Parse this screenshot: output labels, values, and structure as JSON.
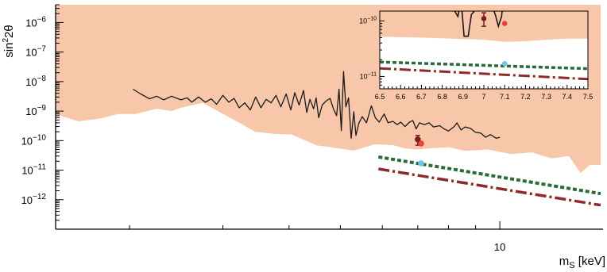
{
  "chart_data": [
    {
      "type": "line",
      "xlabel": "m_S [keV]",
      "ylabel": "sin^2 2θ",
      "x_scale": "log",
      "y_scale": "log",
      "xlim": [
        1.45,
        15.5
      ],
      "ylim": [
        1e-13,
        4e-06
      ],
      "x_tick_labels": [
        {
          "value": 10,
          "label": "10"
        }
      ],
      "y_tick_labels": [
        {
          "value": 1e-06,
          "base": "10",
          "exp": "−6"
        },
        {
          "value": 1e-07,
          "base": "10",
          "exp": "−7"
        },
        {
          "value": 1e-08,
          "base": "10",
          "exp": "−8"
        },
        {
          "value": 1e-09,
          "base": "10",
          "exp": "−9"
        },
        {
          "value": 1e-10,
          "base": "10",
          "exp": "−10"
        },
        {
          "value": 1e-11,
          "base": "10",
          "exp": "−11"
        },
        {
          "value": 1e-12,
          "base": "10",
          "exp": "−12"
        }
      ],
      "excluded_region": {
        "color": "#f8c7a9",
        "lower_boundary": [
          [
            1.45,
            8e-10
          ],
          [
            1.6,
            4.5e-10
          ],
          [
            1.75,
            5.5e-10
          ],
          [
            1.9,
            8e-10
          ],
          [
            2.05,
            8e-10
          ],
          [
            2.25,
            1.2e-09
          ],
          [
            2.4,
            1e-09
          ],
          [
            2.5,
            1.3e-09
          ],
          [
            2.75,
            1.9e-09
          ],
          [
            3.2,
            4.3e-10
          ],
          [
            3.45,
            2e-10
          ],
          [
            3.75,
            1.7e-10
          ],
          [
            4.05,
            1.6e-10
          ],
          [
            4.5,
            7e-11
          ],
          [
            5.3,
            4.6e-11
          ],
          [
            5.8,
            7.5e-11
          ],
          [
            6.3,
            7e-11
          ],
          [
            6.6,
            5.5e-11
          ],
          [
            7.0,
            5e-11
          ],
          [
            7.4,
            5.5e-11
          ],
          [
            8.0,
            6e-11
          ],
          [
            8.6,
            4.5e-11
          ],
          [
            9.5,
            5e-11
          ],
          [
            10.5,
            3.5e-11
          ],
          [
            11.5,
            4e-11
          ],
          [
            12.5,
            2.5e-11
          ],
          [
            13.5,
            3e-11
          ],
          [
            14.2,
            8e-12
          ],
          [
            14.8,
            1.5e-11
          ],
          [
            15.5,
            1.5e-11
          ]
        ]
      },
      "limit_curve": {
        "color": "#1a1a1a",
        "points": [
          [
            2.03,
            5.5e-09
          ],
          [
            2.1,
            3.8e-09
          ],
          [
            2.18,
            2.6e-09
          ],
          [
            2.25,
            3.2e-09
          ],
          [
            2.32,
            2.4e-09
          ],
          [
            2.4,
            3.2e-09
          ],
          [
            2.5,
            2.4e-09
          ],
          [
            2.57,
            2.8e-09
          ],
          [
            2.62,
            2e-09
          ],
          [
            2.7,
            3e-09
          ],
          [
            2.78,
            2e-09
          ],
          [
            2.85,
            2.6e-09
          ],
          [
            2.92,
            1.7e-09
          ],
          [
            3.0,
            3.4e-09
          ],
          [
            3.08,
            2e-09
          ],
          [
            3.15,
            2.7e-09
          ],
          [
            3.22,
            1.3e-09
          ],
          [
            3.3,
            1.9e-09
          ],
          [
            3.38,
            1.1e-09
          ],
          [
            3.46,
            3e-09
          ],
          [
            3.54,
            1.3e-09
          ],
          [
            3.62,
            2.5e-09
          ],
          [
            3.7,
            1.9e-09
          ],
          [
            3.78,
            3.4e-09
          ],
          [
            3.86,
            1.4e-09
          ],
          [
            3.95,
            3.8e-09
          ],
          [
            4.03,
            1.1e-09
          ],
          [
            4.1,
            4.2e-09
          ],
          [
            4.18,
            1.6e-09
          ],
          [
            4.26,
            5e-09
          ],
          [
            4.32,
            9e-10
          ],
          [
            4.38,
            2.5e-09
          ],
          [
            4.45,
            1.2e-09
          ],
          [
            4.5,
            2.8e-09
          ],
          [
            4.55,
            6e-10
          ],
          [
            4.62,
            1.6e-09
          ],
          [
            4.7,
            2.2e-09
          ],
          [
            4.78,
            2.7e-09
          ],
          [
            4.85,
            1.2e-09
          ],
          [
            4.92,
            7e-10
          ],
          [
            4.97,
            5.5e-09
          ],
          [
            5.02,
            2.2e-10
          ],
          [
            5.07,
            2.2e-08
          ],
          [
            5.12,
            1.4e-09
          ],
          [
            5.18,
            2.8e-09
          ],
          [
            5.24,
            1.2e-10
          ],
          [
            5.3,
            9.5e-10
          ],
          [
            5.35,
            1.5e-10
          ],
          [
            5.42,
            4e-10
          ],
          [
            5.5,
            6.5e-10
          ],
          [
            5.6,
            4e-10
          ],
          [
            5.72,
            1.5e-09
          ],
          [
            5.82,
            6e-10
          ],
          [
            5.92,
            4.2e-10
          ],
          [
            6.05,
            8e-10
          ],
          [
            6.15,
            4e-10
          ],
          [
            6.28,
            4.5e-10
          ],
          [
            6.4,
            3.5e-10
          ],
          [
            6.5,
            4.2e-10
          ],
          [
            6.62,
            3e-10
          ],
          [
            6.75,
            4.2e-10
          ],
          [
            6.85,
            4.8e-10
          ],
          [
            6.95,
            2.5e-10
          ],
          [
            7.05,
            4e-10
          ],
          [
            7.2,
            3.5e-10
          ],
          [
            7.35,
            4e-10
          ],
          [
            7.5,
            2.9e-10
          ],
          [
            7.7,
            3.2e-10
          ],
          [
            7.85,
            2.5e-10
          ],
          [
            8.0,
            2.1e-10
          ],
          [
            8.2,
            3e-10
          ],
          [
            8.3,
            4e-10
          ],
          [
            8.45,
            2.3e-10
          ],
          [
            8.6,
            2.9e-10
          ],
          [
            8.8,
            2.6e-10
          ],
          [
            9.0,
            1.9e-10
          ],
          [
            9.2,
            1.8e-10
          ],
          [
            9.4,
            1.3e-10
          ],
          [
            9.6,
            1.6e-10
          ],
          [
            9.85,
            1.2e-10
          ],
          [
            10.0,
            1.3e-10
          ]
        ]
      },
      "green_dashed_line": {
        "color": "#2b6b3a",
        "points": [
          [
            5.9,
            2.8e-11
          ],
          [
            15.5,
            1.6e-12
          ]
        ]
      },
      "red_dashdot_line": {
        "color": "#8e2a2a",
        "points": [
          [
            5.9,
            1.1e-11
          ],
          [
            15.5,
            6.5e-13
          ]
        ]
      },
      "points": [
        {
          "x": 7.0,
          "y": 1.1e-10,
          "yerr_low": 7e-11,
          "yerr_high": 1.5e-10,
          "color": "#7a2020"
        },
        {
          "x": 7.1,
          "y": 8e-11,
          "color": "#e8403a"
        },
        {
          "x": 7.1,
          "y": 1.7e-11,
          "color": "#6ec5e8"
        }
      ]
    },
    {
      "type": "line",
      "xlabel": "",
      "ylabel": "",
      "x_scale": "linear",
      "y_scale": "log",
      "xlim": [
        6.5,
        7.5
      ],
      "ylim": [
        6e-12,
        1.5e-10
      ],
      "x_tick_labels": [
        "6.5",
        "6.6",
        "6.7",
        "6.8",
        "6.9",
        "7",
        "7.1",
        "7.2",
        "7.3",
        "7.4",
        "7.5"
      ],
      "y_tick_labels": [
        {
          "value": 1e-10,
          "base": "10",
          "exp": "−10"
        },
        {
          "value": 1e-11,
          "base": "10",
          "exp": "−11"
        }
      ],
      "excluded_lower_boundary": [
        [
          6.5,
          5.2e-11
        ],
        [
          6.7,
          5e-11
        ],
        [
          6.9,
          4.7e-11
        ],
        [
          7.0,
          4.6e-11
        ],
        [
          7.1,
          4.2e-11
        ],
        [
          7.2,
          4.3e-11
        ],
        [
          7.3,
          4.6e-11
        ],
        [
          7.4,
          4.8e-11
        ],
        [
          7.5,
          4.8e-11
        ]
      ],
      "limit_curve": [
        [
          6.86,
          1.5e-10
        ],
        [
          6.875,
          1.2e-10
        ],
        [
          6.885,
          1.8e-10
        ],
        [
          6.895,
          1.5e-10
        ],
        [
          6.905,
          5.3e-11
        ],
        [
          6.925,
          5.3e-11
        ],
        [
          6.94,
          1.3e-10
        ],
        [
          6.955,
          1.5e-10
        ],
        [
          6.96,
          1.8e-10
        ],
        [
          7.04,
          1.8e-10
        ],
        [
          7.055,
          1.3e-10
        ],
        [
          7.07,
          8e-11
        ],
        [
          7.085,
          1.2e-10
        ],
        [
          7.09,
          1.8e-10
        ]
      ],
      "green_dashed_line": [
        [
          6.5,
          1.82e-11
        ],
        [
          7.5,
          1.38e-11
        ]
      ],
      "red_dashdot_line": [
        [
          6.5,
          1.4e-11
        ],
        [
          7.5,
          9e-12
        ]
      ],
      "points": [
        {
          "x": 7.0,
          "y": 1.1e-10,
          "yerr_low": 8e-11,
          "yerr_high": 1.4e-10,
          "color": "#7a2020"
        },
        {
          "x": 7.1,
          "y": 9e-11,
          "color": "#e8403a"
        },
        {
          "x": 7.1,
          "y": 1.7e-11,
          "color": "#6ec5e8"
        }
      ]
    }
  ]
}
